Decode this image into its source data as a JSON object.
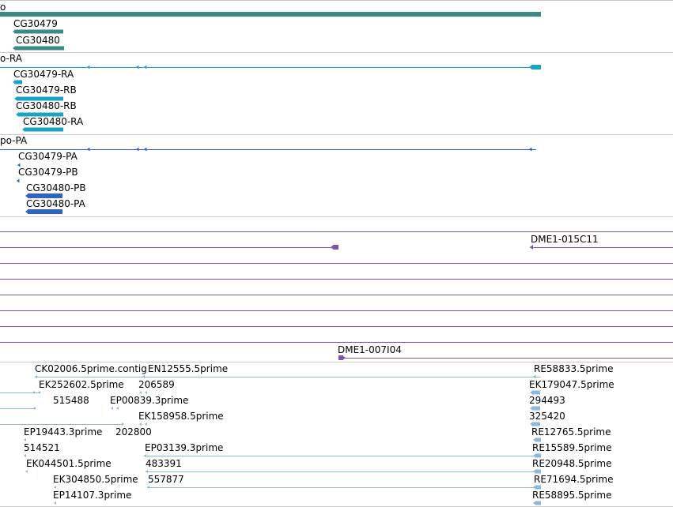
{
  "colors": {
    "gene": "#3b8a86",
    "transcript": "#1aa3c4",
    "protein": "#2f62c8",
    "clone": "#7a56a8",
    "est": "#8ab8de",
    "separator": "#c8c8c8"
  },
  "gene_track": {
    "main_label": "o",
    "features": [
      "CG30479",
      "CG30480"
    ]
  },
  "transcript_track": {
    "main_label": "o-RA",
    "features": [
      "CG30479-RA",
      "CG30479-RB",
      "CG30480-RB",
      "CG30480-RA"
    ]
  },
  "protein_track": {
    "main_label": "po-PA",
    "features": [
      "CG30479-PA",
      "CG30479-PB",
      "CG30480-PB",
      "CG30480-PA"
    ]
  },
  "clone_track": {
    "features": [
      "DME1-015C11",
      "DME1-007I04"
    ]
  },
  "est_track": {
    "features": [
      "CK02006.5prime.contig",
      "EN12555.5prime",
      "RE58833.5prime",
      "EK252602.5prime",
      "206589",
      "EK179047.5prime",
      "515488",
      "EP00839.3prime",
      "294493",
      "EK158958.5prime",
      "325420",
      "EP19443.3prime",
      "202800",
      "RE12765.5prime",
      "514521",
      "EP03139.3prime",
      "RE15589.5prime",
      "EK044501.5prime",
      "483391",
      "RE20948.5prime",
      "EK304850.5prime",
      "557877",
      "RE71694.5prime",
      "EP14107.3prime",
      "RE58895.5prime"
    ]
  }
}
